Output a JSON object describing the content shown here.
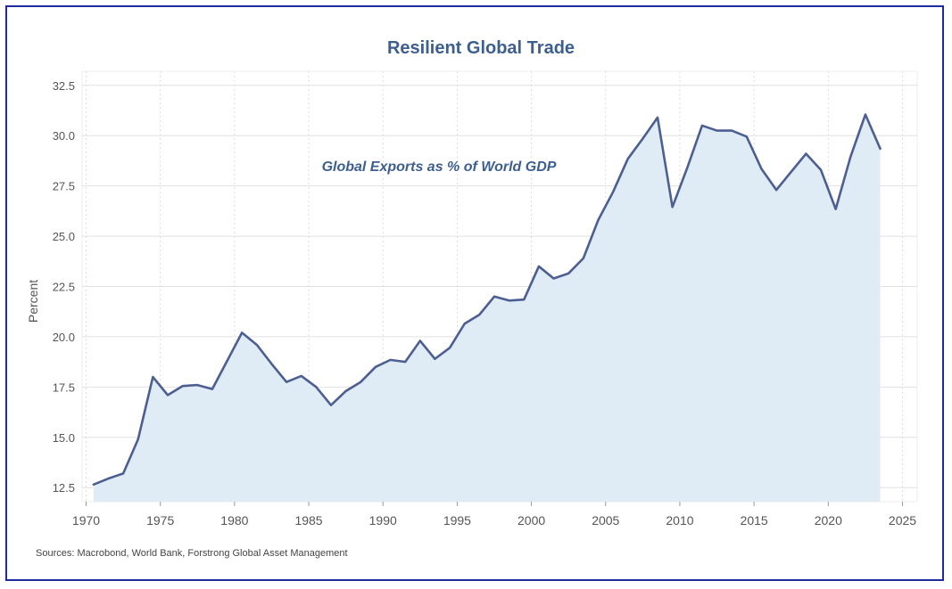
{
  "chart_data": {
    "type": "area",
    "title": "Resilient Global Trade",
    "annotation": "Global Exports as % of World GDP",
    "xlabel": "",
    "ylabel": "Percent",
    "source": "Sources: Macrobond, World Bank, Forstrong Global Asset Management",
    "xlim": [
      1970,
      2025
    ],
    "ylim": [
      11.8,
      33.2
    ],
    "x_ticks": [
      "1970",
      "1975",
      "1980",
      "1985",
      "1990",
      "1995",
      "2000",
      "2005",
      "2010",
      "2015",
      "2020",
      "2025"
    ],
    "y_ticks": [
      "12.5",
      "15.0",
      "17.5",
      "20.0",
      "22.5",
      "25.0",
      "27.5",
      "30.0",
      "32.5"
    ],
    "grid": true,
    "line_color": "#4d5f91",
    "fill_color": "#dfebf5",
    "title_color": "#3d5f8f",
    "series": [
      {
        "name": "Global Exports as % of World GDP",
        "x": [
          1970.5,
          1971.5,
          1972.5,
          1973.5,
          1974.5,
          1975.5,
          1976.5,
          1977.5,
          1978.5,
          1979.5,
          1980.5,
          1981.5,
          1982.5,
          1983.5,
          1984.5,
          1985.5,
          1986.5,
          1987.5,
          1988.5,
          1989.5,
          1990.5,
          1991.5,
          1992.5,
          1993.5,
          1994.5,
          1995.5,
          1996.5,
          1997.5,
          1998.5,
          1999.5,
          2000.5,
          2001.5,
          2002.5,
          2003.5,
          2004.5,
          2005.5,
          2006.5,
          2007.5,
          2008.5,
          2009.5,
          2010.5,
          2011.5,
          2012.5,
          2013.5,
          2014.5,
          2015.5,
          2016.5,
          2017.5,
          2018.5,
          2019.5,
          2020.5,
          2021.5,
          2022.5,
          2023.5
        ],
        "values": [
          12.65,
          12.95,
          13.2,
          14.9,
          18.0,
          17.1,
          17.55,
          17.6,
          17.4,
          18.8,
          20.2,
          19.6,
          18.65,
          17.75,
          18.05,
          17.5,
          16.6,
          17.3,
          17.75,
          18.5,
          18.85,
          18.75,
          19.8,
          18.9,
          19.45,
          20.65,
          21.1,
          22.0,
          21.8,
          21.85,
          23.5,
          22.9,
          23.15,
          23.9,
          25.8,
          27.2,
          28.85,
          29.85,
          30.9,
          26.45,
          28.4,
          30.5,
          30.25,
          30.25,
          29.95,
          28.35,
          27.3,
          28.2,
          29.1,
          28.3,
          26.35,
          28.95,
          31.05,
          29.35
        ]
      }
    ]
  }
}
